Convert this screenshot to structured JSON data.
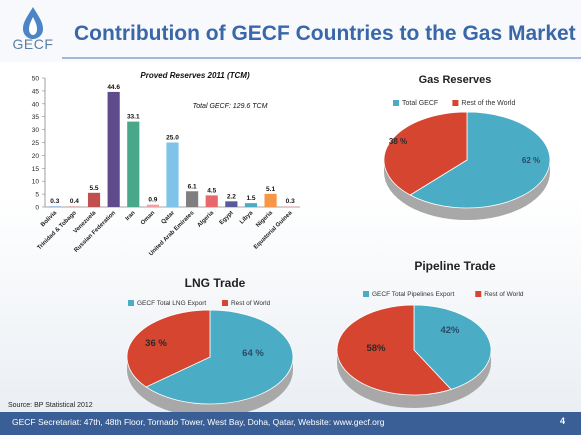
{
  "slide": {
    "title": "Contribution of GECF Countries to the Gas Market",
    "logo_text": "GECF",
    "source": "Source: BP Statistical 2012",
    "footer": "GECF Secretariat: 47th, 48th Floor, Tornado Tower, West Bay, Doha, Qatar,  Website: www.gecf.org",
    "page_number": "4"
  },
  "colors": {
    "title_blue": "#3a67a8",
    "footer_blue": "#3a5f96",
    "gecf_blue": "#4bacc6",
    "rest_red": "#d64530"
  },
  "chart_data": [
    {
      "type": "bar",
      "title": "Proved  Reserves  2011  (TCM)",
      "annotation": "Total GECF: 129.6 TCM",
      "categories": [
        "Bolivia",
        "Trinidad & Tobago",
        "Venezuela",
        "Russian Federation",
        "Iran",
        "Oman",
        "Qatar",
        "United Arab Emirates",
        "Algeria",
        "Egypt",
        "Libya",
        "Nigeria",
        "Equatorial Guinea"
      ],
      "values": [
        0.3,
        0.4,
        5.5,
        44.6,
        33.1,
        0.9,
        25.0,
        6.1,
        4.5,
        2.2,
        1.5,
        5.1,
        0.3
      ],
      "value_labels": [
        "0.3",
        "0.4",
        "5.5",
        "44.6",
        "33.1",
        "0.9",
        "25.0",
        "6.1",
        "4.5",
        "2.2",
        "1.5",
        "5.1",
        "0.3"
      ],
      "bar_colors": [
        "#8eb4e3",
        "#e6b9b8",
        "#c0504d",
        "#5f4b8b",
        "#4aa88a",
        "#f0a0a0",
        "#7fc3e8",
        "#7f7f7f",
        "#e8696b",
        "#5a5a9a",
        "#4bacc6",
        "#f79646",
        "#e6b9b8"
      ],
      "ylim": [
        0,
        50
      ],
      "yticks": [
        "0",
        "5",
        "10",
        "15",
        "20",
        "25",
        "30",
        "35",
        "40",
        "45",
        "50"
      ]
    },
    {
      "type": "pie",
      "title": "Gas Reserves",
      "labels": [
        "Total GECF",
        "Rest of the World"
      ],
      "values": [
        62,
        38
      ],
      "value_labels": [
        "62 %",
        "38 %"
      ]
    },
    {
      "type": "pie",
      "title": "LNG Trade",
      "labels": [
        "GECF Total LNG Export",
        "Rest of World"
      ],
      "values": [
        64,
        36
      ],
      "value_labels": [
        "64 %",
        "36 %"
      ]
    },
    {
      "type": "pie",
      "title": "Pipeline Trade",
      "labels": [
        "GECF Total Pipelines Export",
        "Rest of World"
      ],
      "values": [
        42,
        58
      ],
      "value_labels": [
        "42%",
        "58%"
      ]
    }
  ]
}
